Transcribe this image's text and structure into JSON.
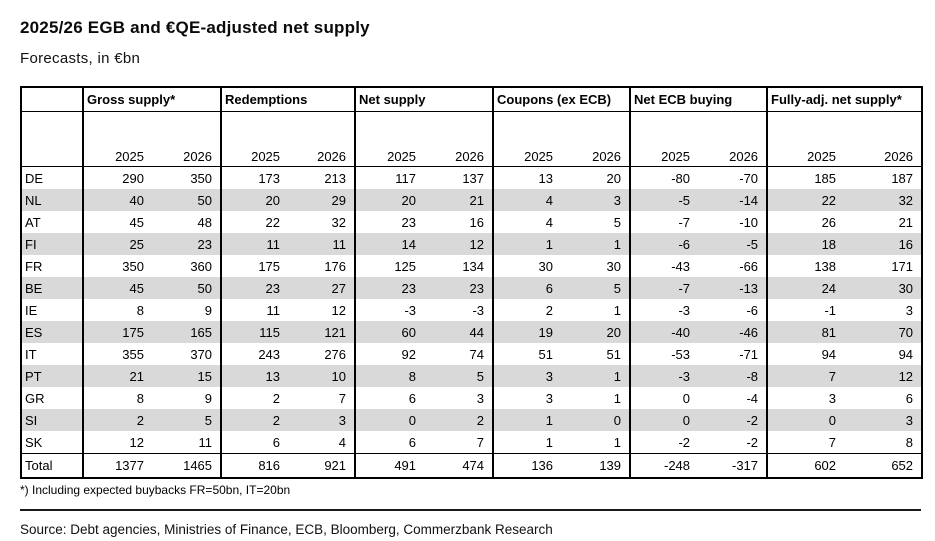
{
  "chart_data": {
    "type": "table",
    "title": "2025/26 EGB and €QE-adjusted net supply",
    "subtitle": "Forecasts, in €bn",
    "column_groups": [
      "Gross supply*",
      "Redemptions",
      "Net supply",
      "Coupons (ex ECB)",
      "Net ECB buying",
      "Fully-adj. net supply*"
    ],
    "sub_columns": [
      "2025",
      "2026"
    ],
    "rows": [
      {
        "label": "DE",
        "values": [
          290,
          350,
          173,
          213,
          117,
          137,
          13,
          20,
          -80,
          -70,
          185,
          187
        ]
      },
      {
        "label": "NL",
        "values": [
          40,
          50,
          20,
          29,
          20,
          21,
          4,
          3,
          -5,
          -14,
          22,
          32
        ]
      },
      {
        "label": "AT",
        "values": [
          45,
          48,
          22,
          32,
          23,
          16,
          4,
          5,
          -7,
          -10,
          26,
          21
        ]
      },
      {
        "label": "FI",
        "values": [
          25,
          23,
          11,
          11,
          14,
          12,
          1,
          1,
          -6,
          -5,
          18,
          16
        ]
      },
      {
        "label": "FR",
        "values": [
          350,
          360,
          175,
          176,
          125,
          134,
          30,
          30,
          -43,
          -66,
          138,
          171
        ]
      },
      {
        "label": "BE",
        "values": [
          45,
          50,
          23,
          27,
          23,
          23,
          6,
          5,
          -7,
          -13,
          24,
          30
        ]
      },
      {
        "label": "IE",
        "values": [
          8,
          9,
          11,
          12,
          -3,
          -3,
          2,
          1,
          -3,
          -6,
          -1,
          3
        ]
      },
      {
        "label": "ES",
        "values": [
          175,
          165,
          115,
          121,
          60,
          44,
          19,
          20,
          -40,
          -46,
          81,
          70
        ]
      },
      {
        "label": "IT",
        "values": [
          355,
          370,
          243,
          276,
          92,
          74,
          51,
          51,
          -53,
          -71,
          94,
          94
        ]
      },
      {
        "label": "PT",
        "values": [
          21,
          15,
          13,
          10,
          8,
          5,
          3,
          1,
          -3,
          -8,
          7,
          12
        ]
      },
      {
        "label": "GR",
        "values": [
          8,
          9,
          2,
          7,
          6,
          3,
          3,
          1,
          0,
          -4,
          3,
          6
        ]
      },
      {
        "label": "SI",
        "values": [
          2,
          5,
          2,
          3,
          0,
          2,
          1,
          0,
          0,
          -2,
          0,
          3
        ]
      },
      {
        "label": "SK",
        "values": [
          12,
          11,
          6,
          4,
          6,
          7,
          1,
          1,
          -2,
          -2,
          7,
          8
        ]
      },
      {
        "label": "Total",
        "values": [
          1377,
          1465,
          816,
          921,
          491,
          474,
          136,
          139,
          -248,
          -317,
          602,
          652
        ],
        "is_total": true
      }
    ],
    "footnote": "*) Including expected buybacks FR=50bn, IT=20bn",
    "source": "Source: Debt agencies, Ministries of Finance, ECB, Bloomberg, Commerzbank Research",
    "layout_hints": {
      "stripe_color": "#d9d9d9",
      "border_color": "#000000",
      "rule_color": "#1a1a1a",
      "grid": "column-group separators only, no lines between data rows"
    }
  }
}
